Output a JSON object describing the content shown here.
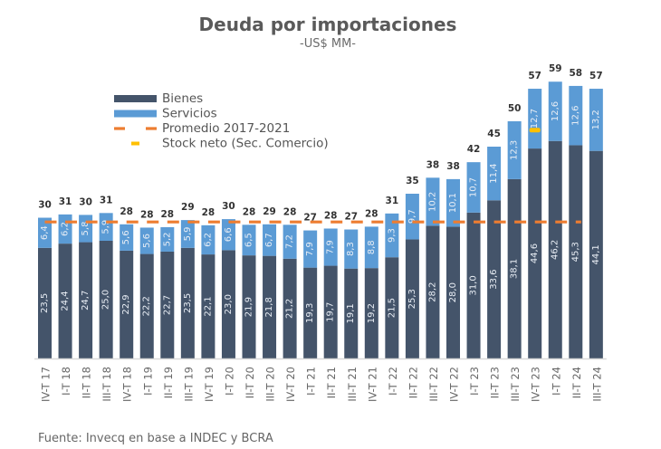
{
  "chart_data": {
    "type": "bar",
    "stacked": true,
    "title": "Deuda por importaciones",
    "subtitle": "-US$ MM-",
    "xlabel": "",
    "ylabel": "",
    "ylim": [
      0,
      60
    ],
    "grid": false,
    "legend_position": "top-left",
    "categories": [
      "IV-T 17",
      "I-T 18",
      "II-T 18",
      "III-T 18",
      "IV-T 18",
      "I-T 19",
      "II-T 19",
      "III-T 19",
      "IV-T 19",
      "I-T 20",
      "II-T 20",
      "III-T 20",
      "IV-T 20",
      "I-T 21",
      "II-T 21",
      "III-T 21",
      "IV-T 21",
      "I-T 22",
      "II-T 22",
      "III-T 22",
      "IV-T 22",
      "I-T 23",
      "II-T 23",
      "III-T 23",
      "IV-T 23",
      "I-T 24",
      "II-T 24",
      "III-T 24"
    ],
    "series": [
      {
        "name": "Bienes",
        "color": "#44546a",
        "values": [
          23.5,
          24.4,
          24.7,
          25.0,
          22.9,
          22.2,
          22.7,
          23.5,
          22.1,
          23.0,
          21.9,
          21.8,
          21.2,
          19.3,
          19.7,
          19.1,
          19.2,
          21.5,
          25.3,
          28.2,
          28.0,
          31.0,
          33.6,
          38.1,
          44.6,
          46.2,
          45.3,
          44.1
        ],
        "labels": [
          "23,5",
          "24,4",
          "24,7",
          "25,0",
          "22,9",
          "22,2",
          "22,7",
          "23,5",
          "22,1",
          "23,0",
          "21,9",
          "21,8",
          "21,2",
          "19,3",
          "19,7",
          "19,1",
          "19,2",
          "21,5",
          "25,3",
          "28,2",
          "28,0",
          "31,0",
          "33,6",
          "38,1",
          "44,6",
          "46,2",
          "45,3",
          "44,1"
        ]
      },
      {
        "name": "Servicios",
        "color": "#5b9bd5",
        "values": [
          6.4,
          6.2,
          5.8,
          5.9,
          5.6,
          5.6,
          5.2,
          5.9,
          6.2,
          6.6,
          6.5,
          6.7,
          7.2,
          7.9,
          7.9,
          8.3,
          8.8,
          9.3,
          9.7,
          10.2,
          10.1,
          10.7,
          11.4,
          12.3,
          12.7,
          12.6,
          12.6,
          13.2
        ],
        "labels": [
          "6,4",
          "6,2",
          "5,8",
          "5,9",
          "5,6",
          "5,6",
          "5,2",
          "5,9",
          "6,2",
          "6,6",
          "6,5",
          "6,7",
          "7,2",
          "7,9",
          "7,9",
          "8,3",
          "8,8",
          "9,3",
          "9,7",
          "10,2",
          "10,1",
          "10,7",
          "11,4",
          "12,3",
          "12,7",
          "12,6",
          "12,6",
          "13,2"
        ]
      }
    ],
    "totals": [
      "30",
      "31",
      "30",
      "31",
      "28",
      "28",
      "28",
      "29",
      "28",
      "30",
      "28",
      "29",
      "28",
      "27",
      "28",
      "27",
      "28",
      "31",
      "35",
      "38",
      "38",
      "42",
      "45",
      "50",
      "57",
      "59",
      "58",
      "57"
    ],
    "reference_lines": [
      {
        "name": "Promedio 2017-2021",
        "color": "#ed7d31",
        "style": "dashed",
        "value": 29.0,
        "from_category": "IV-T 17",
        "to_category": "II-T 24"
      }
    ],
    "markers": [
      {
        "name": "Stock neto (Sec. Comercio)",
        "color": "#ffc000",
        "category": "IV-T 23",
        "value": 48.5
      }
    ],
    "legend": [
      {
        "label": "Bienes",
        "type": "box",
        "color": "#44546a"
      },
      {
        "label": "Servicios",
        "type": "box",
        "color": "#5b9bd5"
      },
      {
        "label": "Promedio 2017-2021",
        "type": "dash",
        "color": "#ed7d31"
      },
      {
        "label": "Stock neto (Sec. Comercio)",
        "type": "marker",
        "color": "#ffc000"
      }
    ],
    "source": "Fuente: Invecq en base a INDEC y BCRA"
  }
}
